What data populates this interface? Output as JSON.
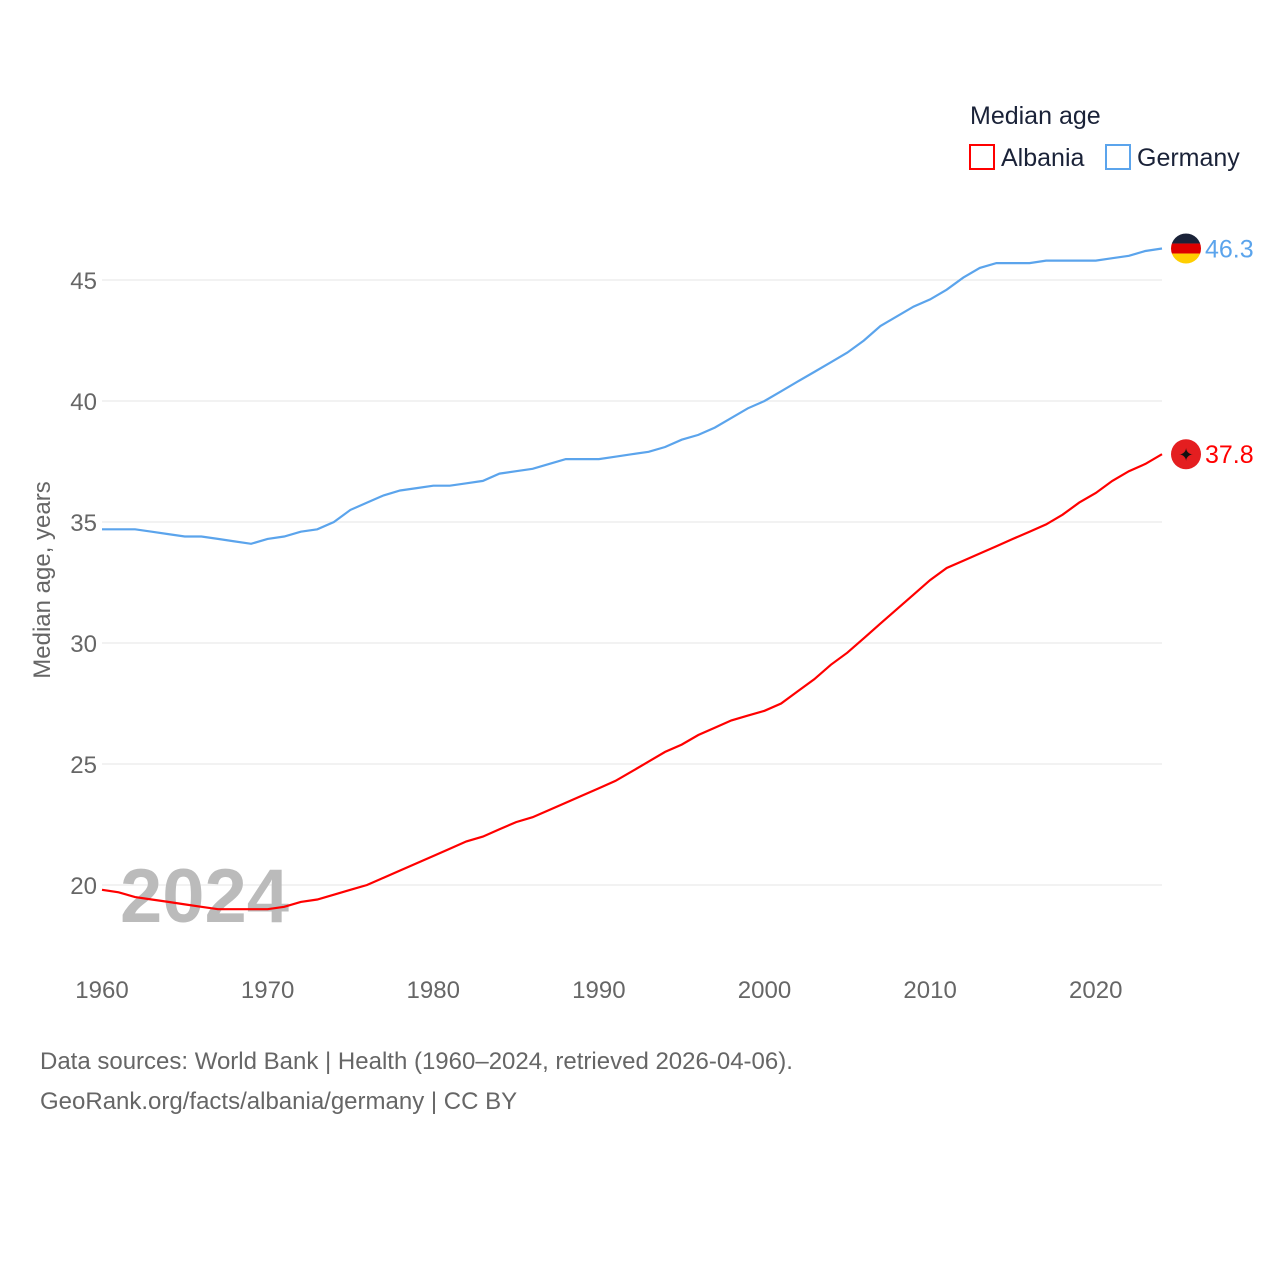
{
  "chart_data": {
    "type": "line",
    "title": "",
    "legend_title": "Median age",
    "legend_placement": "top-right",
    "ylabel": "Median age, years",
    "xlabel": "",
    "ylim": [
      17,
      47.5
    ],
    "xlim": [
      1960,
      2024
    ],
    "yticks": [
      20,
      25,
      30,
      35,
      40,
      45
    ],
    "xticks": [
      1960,
      1970,
      1980,
      1990,
      2000,
      2010,
      2020
    ],
    "grid": true,
    "year_watermark": "2024",
    "x": [
      1960,
      1961,
      1962,
      1963,
      1964,
      1965,
      1966,
      1967,
      1968,
      1969,
      1970,
      1971,
      1972,
      1973,
      1974,
      1975,
      1976,
      1977,
      1978,
      1979,
      1980,
      1981,
      1982,
      1983,
      1984,
      1985,
      1986,
      1987,
      1988,
      1989,
      1990,
      1991,
      1992,
      1993,
      1994,
      1995,
      1996,
      1997,
      1998,
      1999,
      2000,
      2001,
      2002,
      2003,
      2004,
      2005,
      2006,
      2007,
      2008,
      2009,
      2010,
      2011,
      2012,
      2013,
      2014,
      2015,
      2016,
      2017,
      2018,
      2019,
      2020,
      2021,
      2022,
      2023,
      2024
    ],
    "series": [
      {
        "name": "Albania",
        "color": "#ff0000",
        "end_label": "37.8",
        "values": [
          19.8,
          19.7,
          19.5,
          19.4,
          19.3,
          19.2,
          19.1,
          19.0,
          19.0,
          19.0,
          19.0,
          19.1,
          19.3,
          19.4,
          19.6,
          19.8,
          20.0,
          20.3,
          20.6,
          20.9,
          21.2,
          21.5,
          21.8,
          22.0,
          22.3,
          22.6,
          22.8,
          23.1,
          23.4,
          23.7,
          24.0,
          24.3,
          24.7,
          25.1,
          25.5,
          25.8,
          26.2,
          26.5,
          26.8,
          27.0,
          27.2,
          27.5,
          28.0,
          28.5,
          29.1,
          29.6,
          30.2,
          30.8,
          31.4,
          32.0,
          32.6,
          33.1,
          33.4,
          33.7,
          34.0,
          34.3,
          34.6,
          34.9,
          35.3,
          35.8,
          36.2,
          36.7,
          37.1,
          37.4,
          37.8
        ]
      },
      {
        "name": "Germany",
        "color": "#5ba4ec",
        "end_label": "46.3",
        "values": [
          34.7,
          34.7,
          34.7,
          34.6,
          34.5,
          34.4,
          34.4,
          34.3,
          34.2,
          34.1,
          34.3,
          34.4,
          34.6,
          34.7,
          35.0,
          35.5,
          35.8,
          36.1,
          36.3,
          36.4,
          36.5,
          36.5,
          36.6,
          36.7,
          37.0,
          37.1,
          37.2,
          37.4,
          37.6,
          37.6,
          37.6,
          37.7,
          37.8,
          37.9,
          38.1,
          38.4,
          38.6,
          38.9,
          39.3,
          39.7,
          40.0,
          40.4,
          40.8,
          41.2,
          41.6,
          42.0,
          42.5,
          43.1,
          43.5,
          43.9,
          44.2,
          44.6,
          45.1,
          45.5,
          45.7,
          45.7,
          45.7,
          45.8,
          45.8,
          45.8,
          45.8,
          45.9,
          46.0,
          46.2,
          46.3
        ]
      }
    ]
  },
  "footer": {
    "line1": "Data sources: World Bank | Health (1960–2024, retrieved 2026-04-06).",
    "line2": "GeoRank.org/facts/albania/germany | CC BY"
  }
}
